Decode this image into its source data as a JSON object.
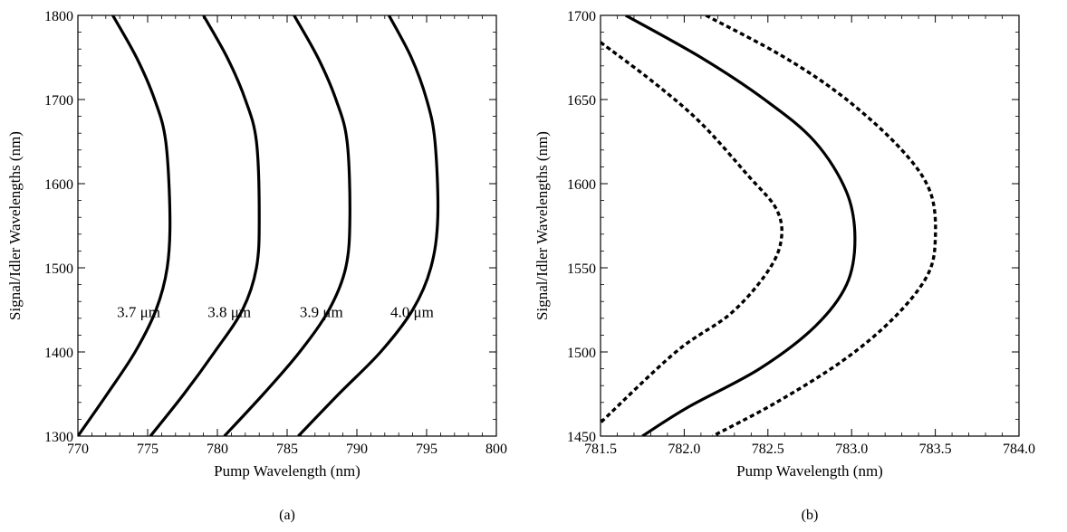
{
  "chart_data": [
    {
      "type": "line",
      "caption": "(a)",
      "xlabel": "Pump Wavelength (nm)",
      "ylabel": "Signal/Idler Wavelengths (nm)",
      "xlim": [
        770,
        800
      ],
      "ylim": [
        1300,
        1800
      ],
      "xticks": [
        770,
        775,
        780,
        785,
        790,
        795,
        800
      ],
      "yticks": [
        1300,
        1400,
        1500,
        1600,
        1700,
        1800
      ],
      "grid": false,
      "series": [
        {
          "name": "3.7 μm",
          "style": "solid",
          "x": [
            772.5,
            774.2,
            775.5,
            776.3,
            776.6,
            776.4,
            775.6,
            774.1,
            772.1,
            770.0
          ],
          "y": [
            1800,
            1750,
            1700,
            1650,
            1560,
            1500,
            1450,
            1400,
            1350,
            1300
          ]
        },
        {
          "name": "3.8 μm",
          "style": "solid",
          "x": [
            779.0,
            780.7,
            782.0,
            782.8,
            783.0,
            782.8,
            781.8,
            779.8,
            777.6,
            775.2
          ],
          "y": [
            1800,
            1750,
            1700,
            1650,
            1560,
            1500,
            1450,
            1400,
            1350,
            1300
          ]
        },
        {
          "name": "3.9 μm",
          "style": "solid",
          "x": [
            785.5,
            787.2,
            788.5,
            789.3,
            789.5,
            789.2,
            788.0,
            785.9,
            783.3,
            780.5
          ],
          "y": [
            1800,
            1750,
            1700,
            1650,
            1560,
            1500,
            1450,
            1400,
            1350,
            1300
          ]
        },
        {
          "name": "4.0 μm",
          "style": "solid",
          "x": [
            792.3,
            793.9,
            795.0,
            795.6,
            795.8,
            795.3,
            794.0,
            791.7,
            788.7,
            785.8
          ],
          "y": [
            1800,
            1750,
            1700,
            1650,
            1560,
            1500,
            1450,
            1400,
            1350,
            1300
          ]
        }
      ],
      "annotations": [
        {
          "text": "3.7 μm",
          "x": 772.8,
          "y": 1448
        },
        {
          "text": "3.8 μm",
          "x": 779.3,
          "y": 1448
        },
        {
          "text": "3.9 μm",
          "x": 785.9,
          "y": 1448
        },
        {
          "text": "4.0 μm",
          "x": 792.4,
          "y": 1448
        }
      ]
    },
    {
      "type": "line",
      "caption": "(b)",
      "xlabel": "Pump Wavelength (nm)",
      "ylabel": "Signal/Idler Wavelengths (nm)",
      "xlim": [
        781.5,
        784.0
      ],
      "ylim": [
        1450,
        1700
      ],
      "xticks": [
        "781.5",
        "782.0",
        "782.5",
        "783.0",
        "783.5",
        "784.0"
      ],
      "yticks": [
        1450,
        1500,
        1550,
        1600,
        1650,
        1700
      ],
      "grid": false,
      "series": [
        {
          "style": "solid",
          "x": [
            781.65,
            782.1,
            782.48,
            782.78,
            782.97,
            783.02,
            782.97,
            782.78,
            782.45,
            782.02,
            781.75
          ],
          "y": [
            1700,
            1675,
            1650,
            1625,
            1595,
            1567,
            1540,
            1515,
            1490,
            1467,
            1450
          ]
        },
        {
          "style": "dotted",
          "x": [
            781.5,
            781.82,
            782.1,
            782.38,
            782.55,
            782.58,
            782.5,
            782.28,
            781.95,
            781.5
          ],
          "y": [
            1684,
            1660,
            1636,
            1605,
            1585,
            1567,
            1548,
            1523,
            1500,
            1458
          ]
        },
        {
          "style": "dotted",
          "x": [
            782.13,
            782.6,
            782.97,
            783.3,
            783.47,
            783.5,
            783.45,
            783.25,
            782.95,
            782.55,
            782.17
          ],
          "y": [
            1700,
            1675,
            1650,
            1620,
            1595,
            1567,
            1545,
            1520,
            1495,
            1470,
            1450
          ]
        }
      ]
    }
  ]
}
